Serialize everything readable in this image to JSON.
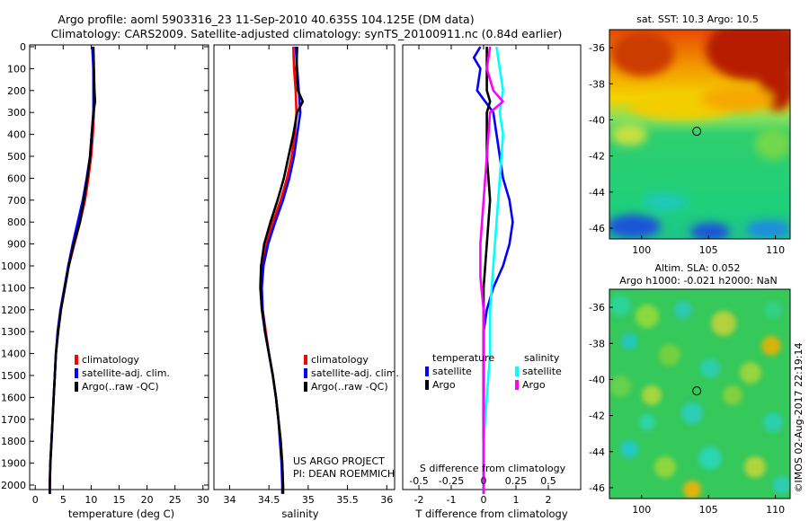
{
  "title_line1": "Argo profile: aoml 5903316_23 11-Sep-2010 40.635S 104.125E (DM data)",
  "title_line2": "Climatology: CARS2009. Satellite-adjusted climatology: synTS_20100911.nc (0.84d earlier)",
  "project_line1": "US ARGO PROJECT",
  "project_line2": "PI: DEAN ROEMMICH",
  "credit": "©IMOS 02-Aug-2017 22:19:14",
  "colors": {
    "climatology": "#ff0000",
    "satellite": "#0000ff",
    "argo": "#000000",
    "salinity_sat": "#00ffff",
    "salinity_argo": "#ff00ff"
  },
  "chart_data": [
    {
      "type": "line",
      "panel": "temperature",
      "xlabel": "temperature (deg C)",
      "ylabel": "",
      "xlim": [
        -1,
        31
      ],
      "ylim": [
        2050,
        0
      ],
      "xticks": [
        0,
        5,
        10,
        15,
        20,
        25,
        30
      ],
      "yticks": [
        0,
        100,
        200,
        300,
        400,
        500,
        600,
        700,
        800,
        900,
        1000,
        1100,
        1200,
        1300,
        1400,
        1500,
        1600,
        1700,
        1800,
        1900,
        2000
      ],
      "legend": [
        "climatology",
        "satellite-adj. clim.",
        "Argo(..raw -QC)"
      ],
      "legend_placement": "lower-right",
      "series": [
        {
          "name": "climatology",
          "points": [
            [
              10.3,
              0
            ],
            [
              10.4,
              100
            ],
            [
              10.5,
              200
            ],
            [
              10.5,
              300
            ],
            [
              10.3,
              400
            ],
            [
              10.0,
              500
            ],
            [
              9.5,
              600
            ],
            [
              8.9,
              700
            ],
            [
              8.0,
              800
            ],
            [
              7.0,
              900
            ],
            [
              6.0,
              1000
            ],
            [
              5.3,
              1100
            ],
            [
              4.6,
              1200
            ],
            [
              4.1,
              1300
            ],
            [
              3.7,
              1400
            ],
            [
              3.5,
              1500
            ],
            [
              3.3,
              1600
            ],
            [
              3.1,
              1700
            ],
            [
              2.9,
              1800
            ],
            [
              2.7,
              1900
            ],
            [
              2.6,
              2000
            ],
            [
              2.6,
              2040
            ]
          ]
        },
        {
          "name": "satellite-adj. clim.",
          "points": [
            [
              10.2,
              0
            ],
            [
              10.4,
              100
            ],
            [
              10.4,
              200
            ],
            [
              10.4,
              300
            ],
            [
              10.1,
              400
            ],
            [
              9.8,
              500
            ],
            [
              9.2,
              600
            ],
            [
              8.5,
              700
            ],
            [
              7.6,
              800
            ],
            [
              6.7,
              900
            ],
            [
              5.9,
              1000
            ],
            [
              5.2,
              1100
            ],
            [
              4.5,
              1200
            ],
            [
              4.0,
              1300
            ],
            [
              3.7,
              1400
            ],
            [
              3.5,
              1500
            ],
            [
              3.3,
              1600
            ],
            [
              3.1,
              1700
            ],
            [
              2.9,
              1800
            ],
            [
              2.7,
              1900
            ],
            [
              2.6,
              2000
            ],
            [
              2.6,
              2040
            ]
          ]
        },
        {
          "name": "Argo(..raw -QC)",
          "points": [
            [
              10.4,
              0
            ],
            [
              10.5,
              100
            ],
            [
              10.6,
              200
            ],
            [
              10.7,
              250
            ],
            [
              10.4,
              300
            ],
            [
              10.1,
              400
            ],
            [
              9.8,
              500
            ],
            [
              9.3,
              600
            ],
            [
              8.7,
              700
            ],
            [
              8.0,
              800
            ],
            [
              6.9,
              900
            ],
            [
              6.0,
              1000
            ],
            [
              5.3,
              1100
            ],
            [
              4.6,
              1200
            ],
            [
              4.1,
              1300
            ],
            [
              3.7,
              1400
            ],
            [
              3.5,
              1500
            ],
            [
              3.3,
              1600
            ],
            [
              3.1,
              1700
            ],
            [
              2.9,
              1800
            ],
            [
              2.7,
              1900
            ],
            [
              2.6,
              2000
            ],
            [
              2.6,
              2040
            ]
          ]
        }
      ]
    },
    {
      "type": "line",
      "panel": "salinity",
      "xlabel": "salinity",
      "ylabel": "",
      "xlim": [
        33.8,
        36.1
      ],
      "ylim": [
        2050,
        0
      ],
      "xticks": [
        34,
        34.5,
        35,
        35.5,
        36
      ],
      "legend": [
        "climatology",
        "satellite-adj. clim.",
        "Argo(..raw -QC)"
      ],
      "legend_placement": "lower-right",
      "series": [
        {
          "name": "climatology",
          "points": [
            [
              34.81,
              0
            ],
            [
              34.82,
              100
            ],
            [
              34.84,
              200
            ],
            [
              34.85,
              300
            ],
            [
              34.83,
              400
            ],
            [
              34.79,
              500
            ],
            [
              34.73,
              600
            ],
            [
              34.65,
              700
            ],
            [
              34.55,
              800
            ],
            [
              34.47,
              900
            ],
            [
              34.42,
              1000
            ],
            [
              34.4,
              1100
            ],
            [
              34.42,
              1200
            ],
            [
              34.46,
              1300
            ],
            [
              34.5,
              1400
            ],
            [
              34.55,
              1500
            ],
            [
              34.59,
              1600
            ],
            [
              34.62,
              1700
            ],
            [
              34.65,
              1800
            ],
            [
              34.67,
              1900
            ],
            [
              34.68,
              2000
            ],
            [
              34.68,
              2040
            ]
          ]
        },
        {
          "name": "satellite-adj. clim.",
          "points": [
            [
              34.84,
              0
            ],
            [
              34.86,
              100
            ],
            [
              34.88,
              200
            ],
            [
              34.9,
              300
            ],
            [
              34.86,
              400
            ],
            [
              34.82,
              500
            ],
            [
              34.76,
              600
            ],
            [
              34.68,
              700
            ],
            [
              34.58,
              800
            ],
            [
              34.49,
              900
            ],
            [
              34.43,
              1000
            ],
            [
              34.41,
              1100
            ],
            [
              34.42,
              1200
            ],
            [
              34.45,
              1300
            ],
            [
              34.5,
              1400
            ],
            [
              34.55,
              1500
            ],
            [
              34.59,
              1600
            ],
            [
              34.62,
              1700
            ],
            [
              34.64,
              1800
            ],
            [
              34.66,
              1900
            ],
            [
              34.67,
              2000
            ],
            [
              34.67,
              2040
            ]
          ]
        },
        {
          "name": "Argo(..raw -QC)",
          "points": [
            [
              34.86,
              0
            ],
            [
              34.85,
              100
            ],
            [
              34.87,
              200
            ],
            [
              34.93,
              250
            ],
            [
              34.86,
              300
            ],
            [
              34.81,
              400
            ],
            [
              34.75,
              500
            ],
            [
              34.69,
              600
            ],
            [
              34.61,
              700
            ],
            [
              34.52,
              800
            ],
            [
              34.44,
              900
            ],
            [
              34.4,
              1000
            ],
            [
              34.39,
              1100
            ],
            [
              34.41,
              1200
            ],
            [
              34.45,
              1300
            ],
            [
              34.5,
              1400
            ],
            [
              34.55,
              1500
            ],
            [
              34.59,
              1600
            ],
            [
              34.62,
              1700
            ],
            [
              34.65,
              1800
            ],
            [
              34.67,
              1900
            ],
            [
              34.68,
              2000
            ],
            [
              34.68,
              2040
            ]
          ]
        }
      ]
    },
    {
      "type": "line",
      "panel": "difference",
      "xlabel": "T difference from climatology",
      "xlabel_top": "S difference from climatology",
      "xlim": [
        -2.5,
        3
      ],
      "ylim": [
        2050,
        0
      ],
      "xticks": [
        -2,
        -1,
        0,
        1,
        2
      ],
      "xticks_top": [
        "-0.5",
        "-0.25",
        "0",
        "0.25",
        "0.5"
      ],
      "legend_groups": [
        {
          "title": "temperature",
          "items": [
            "satellite",
            "Argo"
          ]
        },
        {
          "title": "salinity",
          "items": [
            "satellite",
            "Argo"
          ]
        }
      ],
      "series": [
        {
          "name": "temperature satellite",
          "points": [
            [
              -0.1,
              0
            ],
            [
              -0.3,
              50
            ],
            [
              -0.1,
              100
            ],
            [
              -0.2,
              200
            ],
            [
              0.3,
              300
            ],
            [
              0.4,
              400
            ],
            [
              0.5,
              500
            ],
            [
              0.6,
              600
            ],
            [
              0.8,
              700
            ],
            [
              0.9,
              800
            ],
            [
              0.8,
              900
            ],
            [
              0.6,
              1000
            ],
            [
              0.3,
              1100
            ],
            [
              0.1,
              1200
            ],
            [
              0.0,
              1300
            ],
            [
              0.0,
              1400
            ],
            [
              0.0,
              1600
            ],
            [
              0.0,
              2040
            ]
          ]
        },
        {
          "name": "temperature Argo",
          "points": [
            [
              0.1,
              0
            ],
            [
              0.1,
              100
            ],
            [
              0.1,
              200
            ],
            [
              0.2,
              250
            ],
            [
              0.1,
              300
            ],
            [
              0.1,
              500
            ],
            [
              0.2,
              700
            ],
            [
              0.1,
              900
            ],
            [
              0.0,
              1100
            ],
            [
              0.0,
              1300
            ],
            [
              0.0,
              2040
            ]
          ]
        },
        {
          "name": "salinity satellite",
          "points": [
            [
              0.4,
              0
            ],
            [
              0.5,
              100
            ],
            [
              0.6,
              200
            ],
            [
              0.5,
              300
            ],
            [
              0.6,
              400
            ],
            [
              0.5,
              600
            ],
            [
              0.4,
              800
            ],
            [
              0.3,
              1000
            ],
            [
              0.2,
              1200
            ],
            [
              0.2,
              1400
            ],
            [
              0.1,
              1600
            ],
            [
              0.0,
              1800
            ],
            [
              0.0,
              2040
            ]
          ]
        },
        {
          "name": "salinity Argo",
          "points": [
            [
              0.2,
              0
            ],
            [
              0.1,
              100
            ],
            [
              0.3,
              200
            ],
            [
              0.6,
              250
            ],
            [
              0.2,
              300
            ],
            [
              0.1,
              500
            ],
            [
              0.0,
              700
            ],
            [
              -0.1,
              900
            ],
            [
              -0.1,
              1050
            ],
            [
              0.0,
              1200
            ],
            [
              0.0,
              2040
            ]
          ]
        }
      ]
    },
    {
      "type": "heatmap",
      "panel": "sst-map",
      "title": "sat. SST: 10.3 Argo: 10.5",
      "xlim": [
        97.6,
        111.1
      ],
      "ylim": [
        -46.6,
        -35
      ],
      "xticks": [
        100,
        105,
        110
      ],
      "yticks": [
        -36,
        -38,
        -40,
        -42,
        -44,
        -46
      ],
      "marker": {
        "lon": 104.125,
        "lat": -40.635
      }
    },
    {
      "type": "heatmap",
      "panel": "sla-map",
      "title": "Altim. SLA: 0.052",
      "subtitle": "Argo h1000: -0.021 h2000: NaN",
      "xlim": [
        97.6,
        111.1
      ],
      "ylim": [
        -46.6,
        -35
      ],
      "xticks": [
        100,
        105,
        110
      ],
      "yticks": [
        -36,
        -38,
        -40,
        -42,
        -44,
        -46
      ],
      "marker": {
        "lon": 104.125,
        "lat": -40.635
      }
    }
  ]
}
